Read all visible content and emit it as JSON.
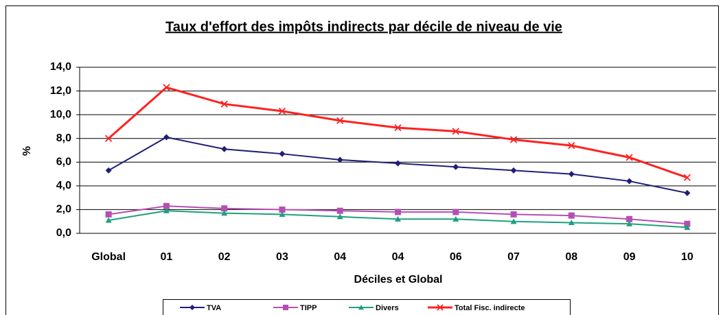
{
  "chart_data": {
    "type": "line",
    "title": "Taux d'effort des impôts indirects par décile de niveau de vie",
    "x_label": "Déciles et Global",
    "y_label": "%",
    "categories": [
      "Global",
      "01",
      "02",
      "03",
      "04",
      "04",
      "06",
      "07",
      "08",
      "09",
      "10"
    ],
    "series": [
      {
        "name": "TVA",
        "color": "#1f1f78",
        "marker": "diamond",
        "values": [
          5.3,
          8.1,
          7.1,
          6.7,
          6.2,
          5.9,
          5.6,
          5.3,
          5.0,
          4.4,
          3.4
        ]
      },
      {
        "name": "TIPP",
        "color": "#b44fb4",
        "marker": "square",
        "values": [
          1.6,
          2.3,
          2.1,
          2.0,
          1.9,
          1.8,
          1.8,
          1.6,
          1.5,
          1.2,
          0.8
        ]
      },
      {
        "name": "Divers",
        "color": "#1fa07c",
        "marker": "triangle",
        "values": [
          1.1,
          1.9,
          1.7,
          1.6,
          1.4,
          1.2,
          1.2,
          1.0,
          0.9,
          0.8,
          0.5
        ]
      },
      {
        "name": "Total Fisc. indirecte",
        "color": "#ff2020",
        "marker": "x",
        "values": [
          8.0,
          12.3,
          10.9,
          10.3,
          9.5,
          8.9,
          8.6,
          7.9,
          7.4,
          6.4,
          4.7
        ]
      }
    ],
    "ylim": [
      0,
      14
    ],
    "yticks": [
      {
        "value": 0,
        "label": "0,0"
      },
      {
        "value": 2,
        "label": "2,0"
      },
      {
        "value": 4,
        "label": "4,0"
      },
      {
        "value": 6,
        "label": "6,0"
      },
      {
        "value": 8,
        "label": "8,0"
      },
      {
        "value": 10,
        "label": "10,0"
      },
      {
        "value": 12,
        "label": "12,0"
      },
      {
        "value": 14,
        "label": "14,0"
      }
    ],
    "grid": true,
    "legend": "bottom"
  }
}
